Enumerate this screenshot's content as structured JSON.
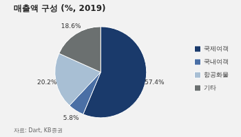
{
  "chart_data": {
    "type": "pie",
    "title": "매출액 구성 (%, 2019)",
    "categories": [
      "국제여객",
      "국내여객",
      "항공화물",
      "기타"
    ],
    "values": [
      57.4,
      5.8,
      20.2,
      18.6
    ],
    "value_labels": [
      "57.4%",
      "5.8%",
      "20.2%",
      "18.6%"
    ],
    "data_labels": true,
    "colors": [
      "#1a3a6b",
      "#4a6fa5",
      "#a8bfd4",
      "#6b7070"
    ],
    "legend": "right",
    "annotations": [
      "자료: Dart, KB증권"
    ]
  }
}
